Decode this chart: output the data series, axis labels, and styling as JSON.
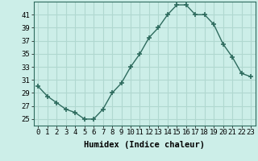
{
  "x": [
    0,
    1,
    2,
    3,
    4,
    5,
    6,
    7,
    8,
    9,
    10,
    11,
    12,
    13,
    14,
    15,
    16,
    17,
    18,
    19,
    20,
    21,
    22,
    23
  ],
  "y": [
    30,
    28.5,
    27.5,
    26.5,
    26,
    25,
    25,
    26.5,
    29,
    30.5,
    33,
    35,
    37.5,
    39,
    41,
    42.5,
    42.5,
    41,
    41,
    39.5,
    36.5,
    34.5,
    32,
    31.5
  ],
  "line_color": "#2e6b5e",
  "marker": "+",
  "marker_size": 4,
  "bg_color": "#cceee8",
  "grid_color": "#b0d8d0",
  "xlabel": "Humidex (Indice chaleur)",
  "xlabel_fontsize": 7.5,
  "ylabel_ticks": [
    25,
    27,
    29,
    31,
    33,
    35,
    37,
    39,
    41
  ],
  "xtick_labels": [
    "0",
    "1",
    "2",
    "3",
    "4",
    "5",
    "6",
    "7",
    "8",
    "9",
    "10",
    "11",
    "12",
    "13",
    "14",
    "15",
    "16",
    "17",
    "18",
    "19",
    "20",
    "21",
    "22",
    "23"
  ],
  "ylim": [
    24,
    43
  ],
  "xlim": [
    -0.5,
    23.5
  ],
  "tick_fontsize": 6.5,
  "line_width": 1.0
}
